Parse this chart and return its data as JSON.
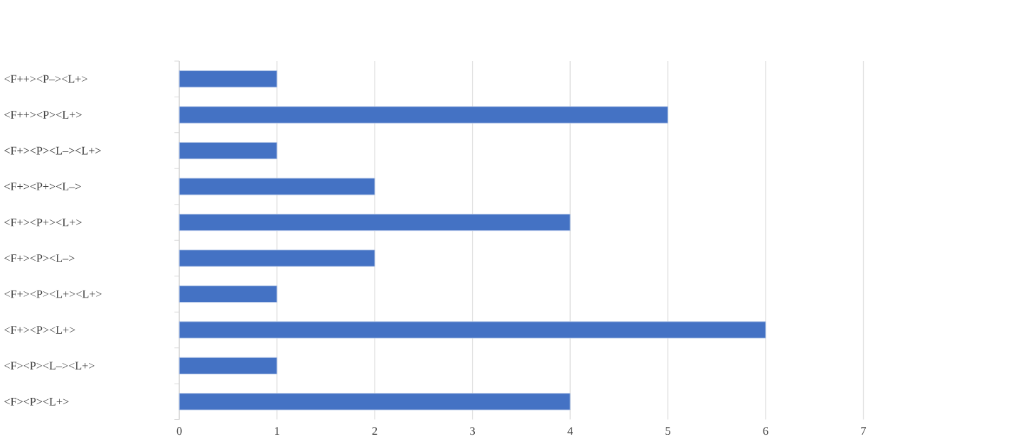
{
  "chart_data": {
    "type": "bar",
    "orientation": "horizontal",
    "categories": [
      "<F++><P–><L+>",
      "<F++><P><L+>",
      "<F+><P><L–><L+>",
      "<F+><P+><L–>",
      "<F+><P+><L+>",
      "<F+><P><L–>",
      "<F+><P><L+><L+>",
      "<F+><P><L+>",
      "<F><P><L–><L+>",
      "<F><P><L+>"
    ],
    "values": [
      1,
      5,
      1,
      2,
      4,
      2,
      1,
      6,
      1,
      4
    ],
    "color": "#4472c4",
    "xlim": [
      0,
      7
    ],
    "xticks": [
      0,
      1,
      2,
      3,
      4,
      5,
      6,
      7
    ],
    "grid": "x"
  }
}
